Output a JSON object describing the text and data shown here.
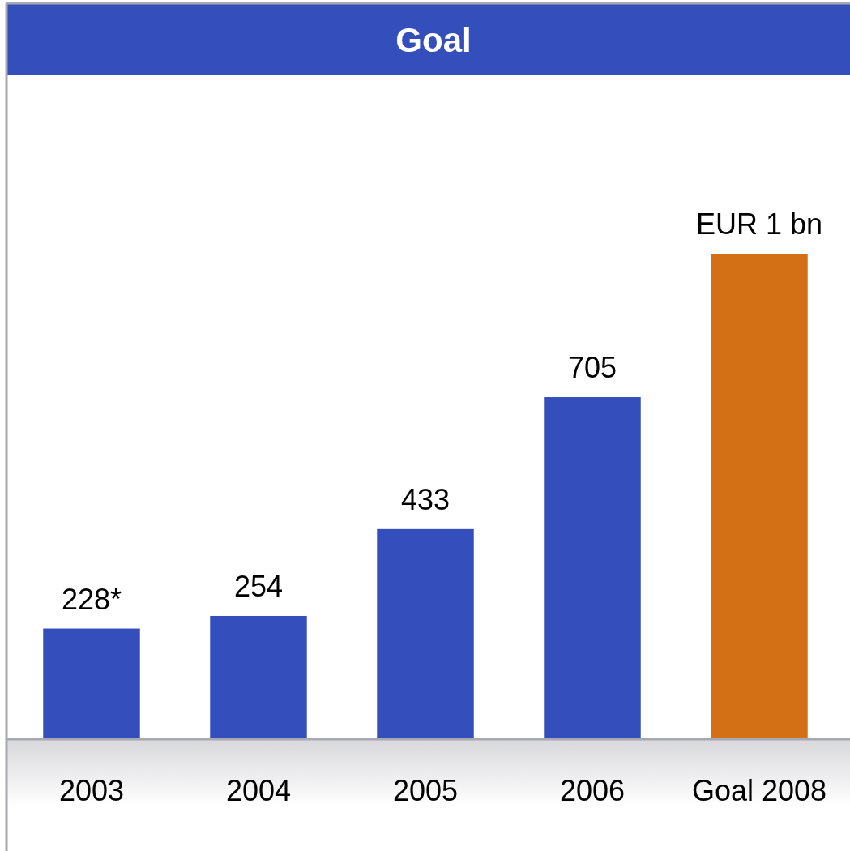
{
  "chart_data": {
    "type": "bar",
    "title": "Goal",
    "categories": [
      "2003",
      "2004",
      "2005",
      "2006",
      "Goal 2008"
    ],
    "values": [
      228,
      254,
      433,
      705,
      1000
    ],
    "colors": [
      "#344ebb",
      "#344ebb",
      "#344ebb",
      "#344ebb",
      "#d37016"
    ],
    "value_labels": [
      "228*",
      "254",
      "433",
      "705",
      "EUR 1 bn"
    ]
  }
}
